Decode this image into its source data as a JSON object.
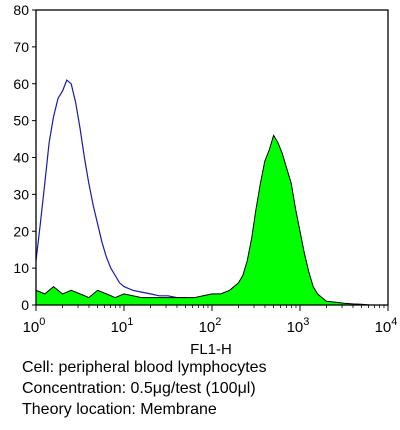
{
  "caption": {
    "cell": "Cell: peripheral blood lymphocytes",
    "concentration": "Concentration: 0.5μg/test (100μl)",
    "theory_location": "Theory location: Membrane"
  },
  "colors": {
    "control_line": "#1a1aa8",
    "stained_fill": "#00ff00",
    "stained_outline": "#000000",
    "axes": "#000000"
  },
  "chart_data": {
    "type": "area",
    "xlabel": "FL1-H",
    "ylabel": "",
    "xscale": "log",
    "xlim": [
      1,
      10000
    ],
    "ylim": [
      0,
      80
    ],
    "x_ticks": [
      {
        "value": 1,
        "base": "10",
        "exp": "0"
      },
      {
        "value": 10,
        "base": "10",
        "exp": "1"
      },
      {
        "value": 100,
        "base": "10",
        "exp": "2"
      },
      {
        "value": 1000,
        "base": "10",
        "exp": "3"
      },
      {
        "value": 10000,
        "base": "10",
        "exp": "4"
      }
    ],
    "y_ticks": [
      0,
      10,
      20,
      30,
      40,
      50,
      60,
      70,
      80
    ],
    "grid": false,
    "series": [
      {
        "style": "line",
        "x": [
          1,
          1.12,
          1.26,
          1.41,
          1.58,
          1.78,
          2.0,
          2.24,
          2.51,
          2.82,
          3.16,
          3.55,
          3.98,
          4.47,
          5.01,
          5.62,
          6.31,
          7.08,
          7.94,
          8.91,
          10,
          12.6,
          15.8,
          20,
          25.1,
          31.6,
          39.8,
          50.1,
          63.1,
          79.4,
          100,
          125.9,
          158.5,
          199.5,
          316.2,
          501.2,
          1000,
          2000,
          3981
        ],
        "y": [
          12,
          22,
          33,
          44,
          51,
          56,
          58,
          61,
          60,
          55,
          48,
          40,
          33,
          27,
          22,
          17,
          13,
          10,
          8,
          6,
          5,
          4,
          3.5,
          3,
          2.5,
          2.5,
          2,
          2,
          1.5,
          1.5,
          1.5,
          1,
          1,
          1,
          0.8,
          0.5,
          0.3,
          0.2,
          0
        ]
      },
      {
        "style": "filled",
        "x": [
          1,
          1.26,
          1.58,
          2.0,
          2.51,
          3.16,
          3.98,
          5.01,
          6.31,
          7.94,
          10,
          15.8,
          25.1,
          39.8,
          63.1,
          100,
          125.9,
          158.5,
          199.5,
          223.9,
          251.2,
          281.8,
          316.2,
          354.8,
          398.1,
          446.7,
          501.2,
          562.3,
          631,
          707.9,
          794.3,
          891.3,
          1000,
          1122,
          1259,
          1413,
          1585,
          1778,
          1995,
          2512,
          3162,
          3981,
          5012,
          6310
        ],
        "y": [
          4,
          3,
          5,
          3,
          4,
          3,
          2,
          4,
          3,
          2,
          3,
          2,
          2,
          2,
          2,
          3,
          3,
          4,
          6,
          8,
          12,
          18,
          26,
          33,
          39,
          42,
          46,
          44,
          41,
          37,
          33,
          26,
          20,
          14,
          9,
          5,
          3,
          2,
          1,
          0.8,
          0.5,
          0.3,
          0.2,
          0
        ]
      }
    ]
  }
}
